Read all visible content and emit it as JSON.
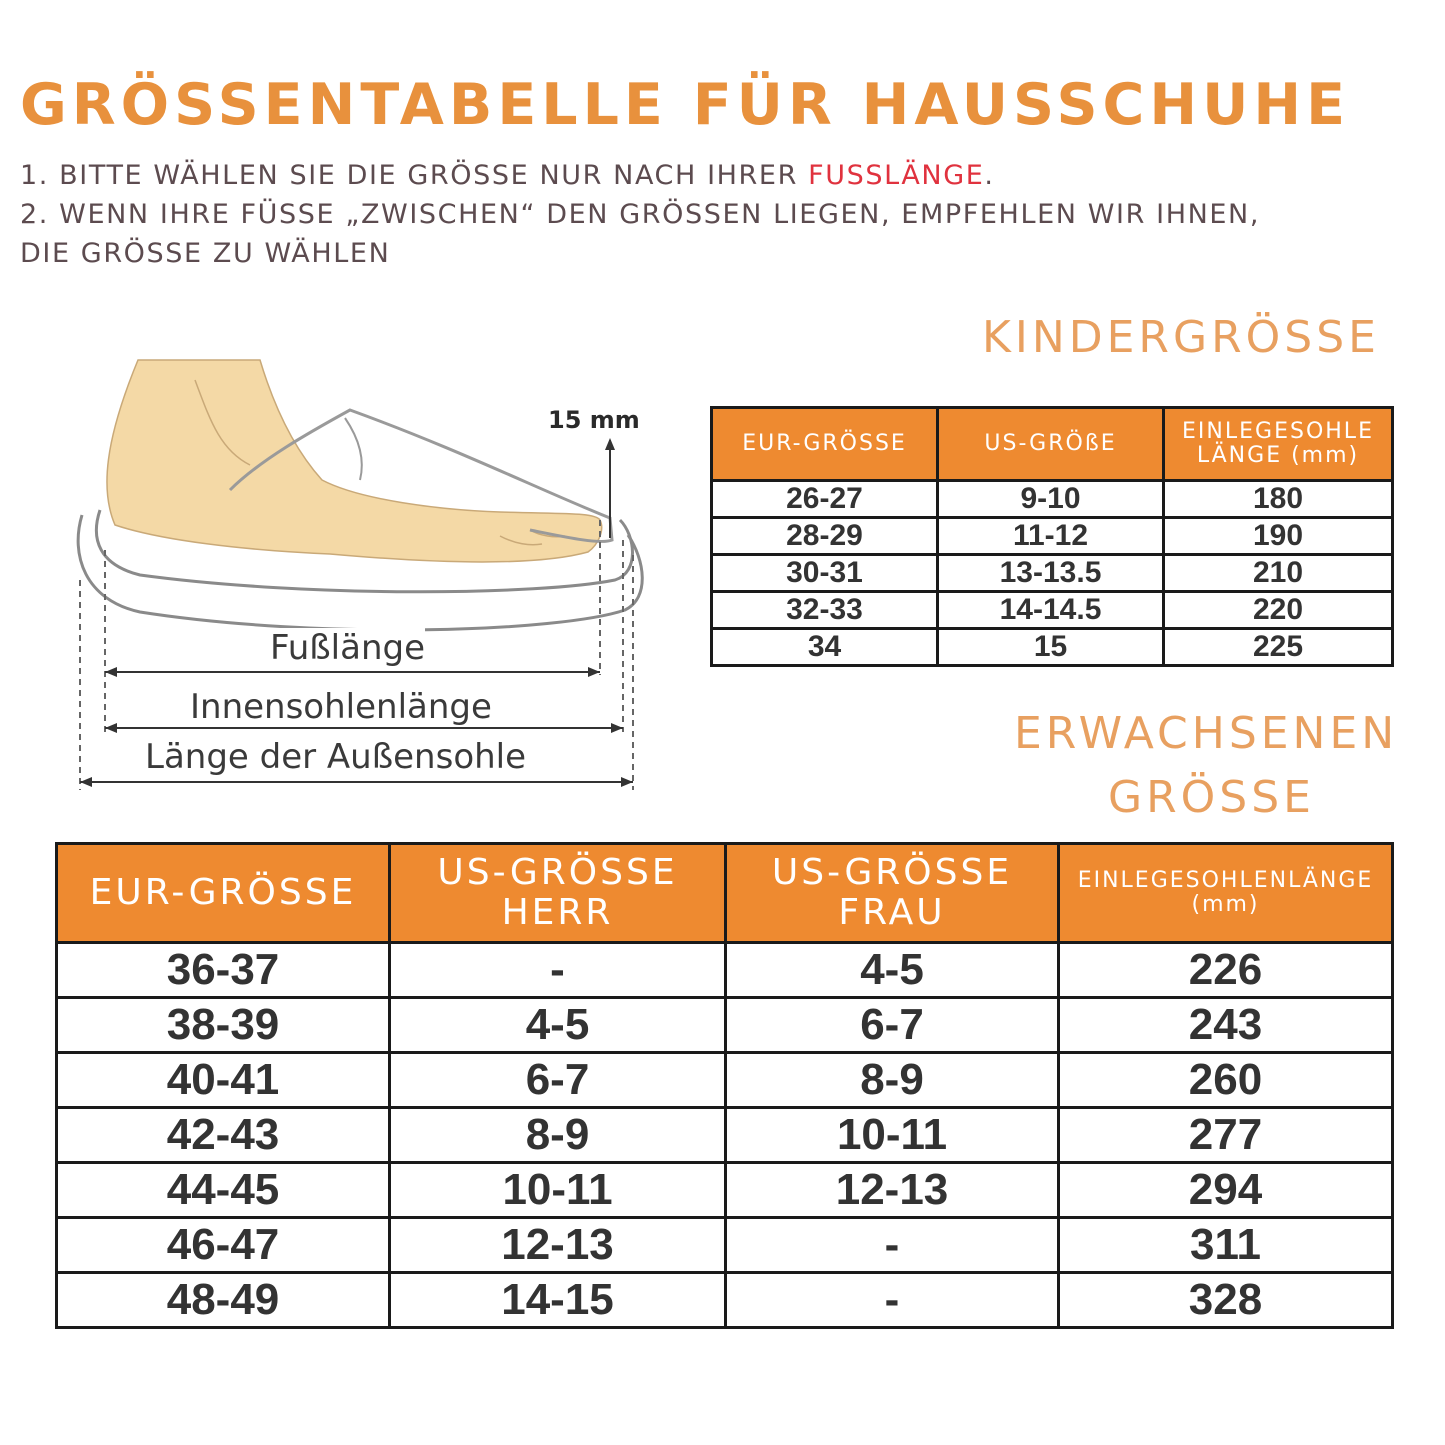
{
  "header": {
    "title": "GRÖSSENTABELLE FÜR HAUSSCHUHE",
    "line1_prefix": "1. BITTE WÄHLEN SIE DIE GRÖSSE NUR NACH IHRER ",
    "line1_highlight": "FUSSLÄNGE",
    "line1_suffix": ".",
    "line2": "2. WENN IHRE FÜSSE „ZWISCHEN“ DEN GRÖSSEN LIEGEN, EMPFEHLEN WIR IHNEN,",
    "line3": "DIE GRÖSSE ZU WÄHLEN"
  },
  "colors": {
    "title": "#e8913d",
    "highlight": "#e0323e",
    "header_fill": "#ee8a30",
    "section_title": "#e8a060"
  },
  "diagram": {
    "allowance_label": "15 mm",
    "foot_length_label": "Fußlänge",
    "insole_length_label": "Innensohlenlänge",
    "outsole_length_label": "Länge der Außensohle",
    "icon": "foot-in-slipper-illustration"
  },
  "kids": {
    "title": "KINDERGRÖSSE",
    "headers": [
      "EUR-GRÖSSE",
      "US-GRÖßE",
      "EINLEGESOHLE LÄNGE (mm)"
    ],
    "rows": [
      [
        "26-27",
        "9-10",
        "180"
      ],
      [
        "28-29",
        "11-12",
        "190"
      ],
      [
        "30-31",
        "13-13.5",
        "210"
      ],
      [
        "32-33",
        "14-14.5",
        "220"
      ],
      [
        "34",
        "15",
        "225"
      ]
    ]
  },
  "adults": {
    "title_line1": "ERWACHSENEN",
    "title_line2": "GRÖSSE",
    "headers": [
      "EUR-GRÖSSE",
      "US-GRÖSSE HERR",
      "US-GRÖSSE FRAU",
      "EINLEGESOHLENLÄNGE (mm)"
    ],
    "rows": [
      [
        "36-37",
        "-",
        "4-5",
        "226"
      ],
      [
        "38-39",
        "4-5",
        "6-7",
        "243"
      ],
      [
        "40-41",
        "6-7",
        "8-9",
        "260"
      ],
      [
        "42-43",
        "8-9",
        "10-11",
        "277"
      ],
      [
        "44-45",
        "10-11",
        "12-13",
        "294"
      ],
      [
        "46-47",
        "12-13",
        "-",
        "311"
      ],
      [
        "48-49",
        "14-15",
        "-",
        "328"
      ]
    ]
  }
}
